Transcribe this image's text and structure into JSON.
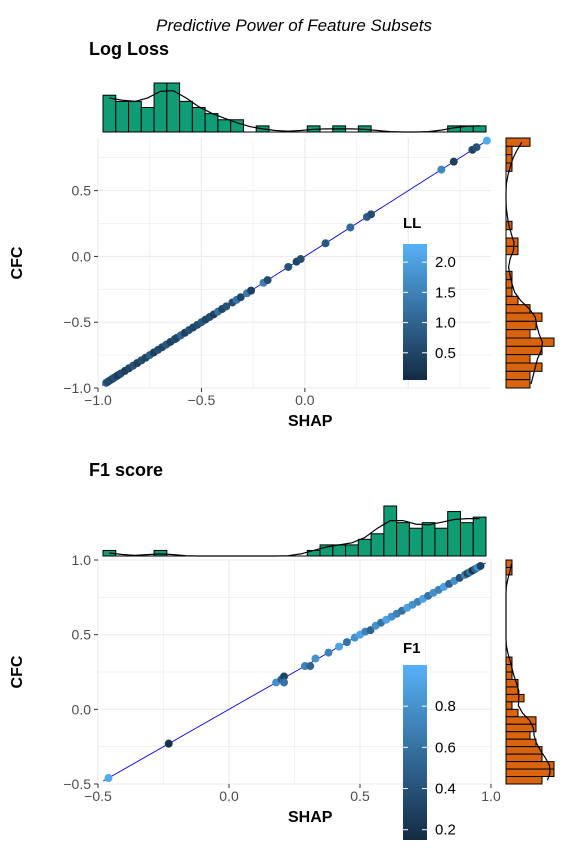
{
  "figure_title": "Predictive Power of Feature Subsets",
  "colors": {
    "hist_top": "#109c75",
    "hist_right": "#d9640f",
    "grid": "#ebebeb",
    "line": "#0000cc",
    "point_low": "#132b43",
    "point_high": "#56b1f7"
  },
  "chart_data": [
    {
      "type": "scatter",
      "title": "Log Loss",
      "xlabel": "SHAP",
      "ylabel": "CFC",
      "xlim": [
        -1.0,
        0.9
      ],
      "ylim": [
        -1.0,
        0.9
      ],
      "x_ticks": [
        -1.0,
        -0.5,
        0.0
      ],
      "x_tick_labels": [
        "−1.0",
        "−0.5",
        "0.0"
      ],
      "y_ticks": [
        -1.0,
        -0.5,
        0.0,
        0.5
      ],
      "y_tick_labels": [
        "−1.0",
        "−0.5",
        "0.0",
        "0.5"
      ],
      "grid": true,
      "reference_line": "y = x",
      "legend": {
        "title": "LL",
        "range": [
          0.05,
          2.3
        ],
        "ticks": [
          0.5,
          1.0,
          1.5,
          2.0
        ],
        "tick_labels": [
          "0.5",
          "1.0",
          "1.5",
          "2.0"
        ],
        "placement": "right"
      },
      "points": [
        {
          "x": -0.96,
          "y": -0.96,
          "c": 0.8
        },
        {
          "x": -0.95,
          "y": -0.95,
          "c": 0.5
        },
        {
          "x": -0.94,
          "y": -0.94,
          "c": 0.6
        },
        {
          "x": -0.93,
          "y": -0.93,
          "c": 0.4
        },
        {
          "x": -0.92,
          "y": -0.92,
          "c": 0.7
        },
        {
          "x": -0.91,
          "y": -0.91,
          "c": 0.5
        },
        {
          "x": -0.9,
          "y": -0.9,
          "c": 0.3
        },
        {
          "x": -0.89,
          "y": -0.89,
          "c": 0.6
        },
        {
          "x": -0.87,
          "y": -0.87,
          "c": 0.4
        },
        {
          "x": -0.85,
          "y": -0.85,
          "c": 0.5
        },
        {
          "x": -0.83,
          "y": -0.83,
          "c": 0.7
        },
        {
          "x": -0.81,
          "y": -0.81,
          "c": 0.4
        },
        {
          "x": -0.79,
          "y": -0.79,
          "c": 0.6
        },
        {
          "x": -0.77,
          "y": -0.77,
          "c": 0.5
        },
        {
          "x": -0.75,
          "y": -0.75,
          "c": 0.9
        },
        {
          "x": -0.73,
          "y": -0.73,
          "c": 0.4
        },
        {
          "x": -0.71,
          "y": -0.71,
          "c": 0.6
        },
        {
          "x": -0.69,
          "y": -0.69,
          "c": 0.5
        },
        {
          "x": -0.67,
          "y": -0.67,
          "c": 0.8
        },
        {
          "x": -0.65,
          "y": -0.65,
          "c": 0.4
        },
        {
          "x": -0.63,
          "y": -0.63,
          "c": 0.6
        },
        {
          "x": -0.62,
          "y": -0.62,
          "c": 0.5
        },
        {
          "x": -0.6,
          "y": -0.6,
          "c": 1.0
        },
        {
          "x": -0.58,
          "y": -0.58,
          "c": 0.4
        },
        {
          "x": -0.56,
          "y": -0.56,
          "c": 0.7
        },
        {
          "x": -0.54,
          "y": -0.54,
          "c": 0.5
        },
        {
          "x": -0.52,
          "y": -0.52,
          "c": 0.6
        },
        {
          "x": -0.5,
          "y": -0.5,
          "c": 0.8
        },
        {
          "x": -0.48,
          "y": -0.48,
          "c": 0.5
        },
        {
          "x": -0.46,
          "y": -0.46,
          "c": 0.6
        },
        {
          "x": -0.44,
          "y": -0.44,
          "c": 0.4
        },
        {
          "x": -0.42,
          "y": -0.42,
          "c": 1.2
        },
        {
          "x": -0.4,
          "y": -0.4,
          "c": 0.5
        },
        {
          "x": -0.38,
          "y": -0.38,
          "c": 0.7
        },
        {
          "x": -0.35,
          "y": -0.35,
          "c": 0.6
        },
        {
          "x": -0.33,
          "y": -0.33,
          "c": 1.3
        },
        {
          "x": -0.31,
          "y": -0.31,
          "c": 0.5
        },
        {
          "x": -0.28,
          "y": -0.28,
          "c": 1.4
        },
        {
          "x": -0.26,
          "y": -0.26,
          "c": 0.4
        },
        {
          "x": -0.2,
          "y": -0.2,
          "c": 1.5
        },
        {
          "x": -0.08,
          "y": -0.08,
          "c": 0.7
        },
        {
          "x": -0.04,
          "y": -0.04,
          "c": 0.5
        },
        {
          "x": -0.18,
          "y": -0.18,
          "c": 0.6
        },
        {
          "x": -0.02,
          "y": -0.02,
          "c": 0.6
        },
        {
          "x": 0.1,
          "y": 0.1,
          "c": 0.8
        },
        {
          "x": 0.22,
          "y": 0.22,
          "c": 1.1
        },
        {
          "x": 0.3,
          "y": 0.3,
          "c": 0.9
        },
        {
          "x": 0.32,
          "y": 0.32,
          "c": 0.6
        },
        {
          "x": 0.72,
          "y": 0.72,
          "c": 0.4
        },
        {
          "x": 0.66,
          "y": 0.66,
          "c": 1.6
        },
        {
          "x": 0.81,
          "y": 0.81,
          "c": 0.5
        },
        {
          "x": 0.83,
          "y": 0.83,
          "c": 0.7
        },
        {
          "x": 0.88,
          "y": 0.88,
          "c": 2.2
        }
      ],
      "top_hist": {
        "counts": [
          6,
          5,
          5,
          4,
          8,
          8,
          5,
          4,
          3,
          2,
          2,
          0,
          1,
          0,
          0,
          0,
          1,
          0,
          1,
          0,
          1,
          0,
          0,
          0,
          0,
          0,
          0,
          1,
          1,
          1
        ]
      },
      "right_hist": {
        "counts": [
          4,
          1,
          1,
          1,
          0,
          0,
          0,
          0,
          0,
          0,
          1,
          0,
          2,
          2,
          0,
          0,
          1,
          1,
          1,
          2,
          4,
          6,
          5,
          4,
          8,
          6,
          4,
          6,
          4,
          4
        ]
      }
    },
    {
      "type": "scatter",
      "title": "F1 score",
      "xlabel": "SHAP",
      "ylabel": "CFC",
      "xlim": [
        -0.5,
        1.0
      ],
      "ylim": [
        -0.5,
        1.0
      ],
      "x_ticks": [
        -0.5,
        0.0,
        0.5,
        1.0
      ],
      "x_tick_labels": [
        "−0.5",
        "0.0",
        "0.5",
        "1.0"
      ],
      "y_ticks": [
        -0.5,
        0.0,
        0.5,
        1.0
      ],
      "y_tick_labels": [
        "−0.5",
        "0.0",
        "0.5",
        "1.0"
      ],
      "grid": true,
      "reference_line": "y = x",
      "legend": {
        "title": "F1",
        "range": [
          0.15,
          1.0
        ],
        "ticks": [
          0.2,
          0.4,
          0.6,
          0.8
        ],
        "tick_labels": [
          "0.2",
          "0.4",
          "0.6",
          "0.8"
        ],
        "placement": "right"
      },
      "points": [
        {
          "x": -0.46,
          "y": -0.46,
          "c": 0.95
        },
        {
          "x": -0.23,
          "y": -0.23,
          "c": 0.2
        },
        {
          "x": 0.18,
          "y": 0.18,
          "c": 0.8
        },
        {
          "x": 0.2,
          "y": 0.2,
          "c": 0.5
        },
        {
          "x": 0.21,
          "y": 0.22,
          "c": 0.3
        },
        {
          "x": 0.21,
          "y": 0.18,
          "c": 0.6
        },
        {
          "x": 0.29,
          "y": 0.29,
          "c": 0.7
        },
        {
          "x": 0.31,
          "y": 0.29,
          "c": 0.5
        },
        {
          "x": 0.33,
          "y": 0.34,
          "c": 0.8
        },
        {
          "x": 0.38,
          "y": 0.38,
          "c": 0.7
        },
        {
          "x": 0.42,
          "y": 0.42,
          "c": 0.9
        },
        {
          "x": 0.45,
          "y": 0.45,
          "c": 0.6
        },
        {
          "x": 0.48,
          "y": 0.48,
          "c": 0.8
        },
        {
          "x": 0.5,
          "y": 0.5,
          "c": 0.9
        },
        {
          "x": 0.52,
          "y": 0.52,
          "c": 0.7
        },
        {
          "x": 0.54,
          "y": 0.53,
          "c": 0.5
        },
        {
          "x": 0.56,
          "y": 0.56,
          "c": 0.8
        },
        {
          "x": 0.58,
          "y": 0.58,
          "c": 0.6
        },
        {
          "x": 0.6,
          "y": 0.6,
          "c": 0.9
        },
        {
          "x": 0.62,
          "y": 0.62,
          "c": 0.8
        },
        {
          "x": 0.64,
          "y": 0.64,
          "c": 0.7
        },
        {
          "x": 0.66,
          "y": 0.66,
          "c": 0.6
        },
        {
          "x": 0.68,
          "y": 0.68,
          "c": 0.9
        },
        {
          "x": 0.7,
          "y": 0.7,
          "c": 0.8
        },
        {
          "x": 0.72,
          "y": 0.72,
          "c": 0.7
        },
        {
          "x": 0.74,
          "y": 0.74,
          "c": 0.9
        },
        {
          "x": 0.76,
          "y": 0.76,
          "c": 0.6
        },
        {
          "x": 0.78,
          "y": 0.78,
          "c": 0.8
        },
        {
          "x": 0.8,
          "y": 0.8,
          "c": 0.7
        },
        {
          "x": 0.82,
          "y": 0.82,
          "c": 0.9
        },
        {
          "x": 0.84,
          "y": 0.84,
          "c": 0.5
        },
        {
          "x": 0.86,
          "y": 0.86,
          "c": 0.8
        },
        {
          "x": 0.88,
          "y": 0.88,
          "c": 0.4
        },
        {
          "x": 0.9,
          "y": 0.9,
          "c": 0.7
        },
        {
          "x": 0.91,
          "y": 0.91,
          "c": 0.3
        },
        {
          "x": 0.92,
          "y": 0.92,
          "c": 0.6
        },
        {
          "x": 0.93,
          "y": 0.93,
          "c": 0.2
        },
        {
          "x": 0.94,
          "y": 0.94,
          "c": 0.5
        },
        {
          "x": 0.95,
          "y": 0.95,
          "c": 0.8
        },
        {
          "x": 0.96,
          "y": 0.96,
          "c": 0.3
        }
      ],
      "top_hist": {
        "counts": [
          1,
          0,
          0,
          0,
          1,
          0,
          0,
          0,
          0,
          0,
          0,
          0,
          0,
          0,
          0,
          0,
          1,
          2,
          2,
          2,
          3,
          4,
          9,
          6,
          5,
          6,
          5,
          8,
          6,
          7
        ]
      },
      "right_hist": {
        "counts": [
          1,
          1,
          0,
          0,
          0,
          0,
          0,
          0,
          0,
          0,
          0,
          0,
          0,
          1,
          1,
          1,
          2,
          2,
          3,
          1,
          2,
          5,
          5,
          4,
          5,
          6,
          6,
          8,
          8,
          6
        ]
      }
    }
  ]
}
